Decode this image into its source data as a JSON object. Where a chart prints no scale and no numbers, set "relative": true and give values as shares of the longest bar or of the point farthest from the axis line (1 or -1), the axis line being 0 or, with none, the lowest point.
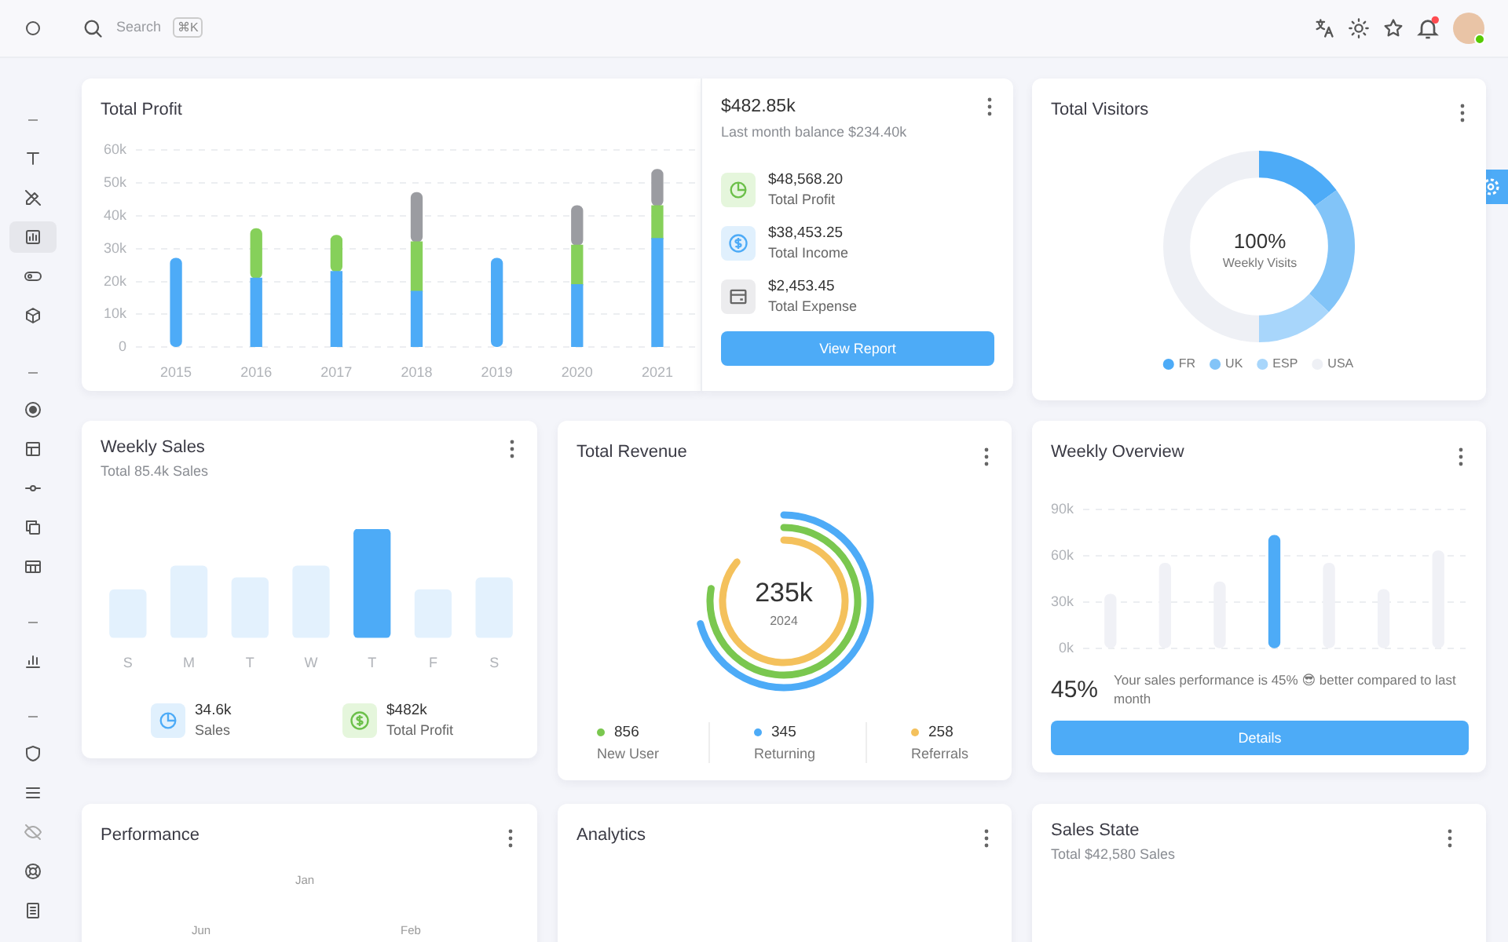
{
  "chart_data": [
    {
      "type": "other",
      "annotations": [
        "Search",
        "⌘K"
      ]
    },
    {
      "type": "bar",
      "title": "Total Profit",
      "categories": [
        "2015",
        "2016",
        "2017",
        "2018",
        "2019",
        "2020",
        "2021"
      ],
      "stacked": true,
      "series": [
        {
          "color": "#4dabf7",
          "values": [
            27000,
            21000,
            23000,
            17000,
            27000,
            19000,
            33000
          ]
        },
        {
          "color": "#86d05a",
          "values": [
            null,
            15000,
            11000,
            15000,
            null,
            12000,
            10000
          ]
        },
        {
          "color": "#9b9ca1",
          "values": [
            null,
            null,
            null,
            15000,
            null,
            12000,
            11000
          ]
        }
      ],
      "ylim": [
        0,
        60000
      ],
      "yticks": [
        0,
        {
          "value": 10000,
          "label": "10k"
        },
        {
          "value": 20000,
          "label": "20k"
        },
        {
          "value": 30000,
          "label": "30k"
        },
        {
          "value": 40000,
          "label": "40k"
        },
        {
          "value": 50000,
          "label": "50k"
        },
        {
          "value": 60000,
          "label": "60k"
        }
      ],
      "grid": "y"
    },
    {
      "type": "other",
      "title": "$482.85k",
      "subtitle": "Last month balance $234.40k",
      "annotations": [
        "$48,568.20",
        "Total Profit",
        "$38,453.25",
        "Total Income",
        "$2,453.45",
        "Total Expense",
        "View Report"
      ]
    },
    {
      "type": "donut",
      "title": "Total Visitors",
      "categories": [
        "FR",
        "UK",
        "ESP",
        "USA"
      ],
      "values": [
        15,
        22,
        13,
        50
      ],
      "colors": [
        "#4dabf7",
        "#82c4f8",
        "#a8d6fb",
        "#eef0f5"
      ],
      "legend": "bottom",
      "annotations": [
        "100%",
        "Weekly Visits"
      ]
    },
    {
      "type": "bar",
      "title": "Weekly Sales",
      "subtitle": "Total 85.4k Sales",
      "categories": [
        "S",
        "M",
        "T",
        "W",
        "T",
        "F",
        "S"
      ],
      "relative": true,
      "values": [
        0.44,
        0.66,
        0.55,
        0.66,
        1,
        0.44,
        0.55
      ],
      "colors": [
        "#e3f1fd",
        "#e3f1fd",
        "#e3f1fd",
        "#e3f1fd",
        "#4dabf7",
        "#e3f1fd",
        "#e3f1fd"
      ],
      "annotations": [
        "34.6k",
        "Sales",
        "$482k",
        "Total Profit"
      ]
    },
    {
      "type": "other",
      "title": "Total Revenue",
      "annotations": [
        "235k",
        "2024",
        "856",
        "New User",
        "345",
        "Returning",
        "258",
        "Referrals"
      ]
    },
    {
      "type": "bar",
      "title": "Weekly Overview",
      "categories": [
        null,
        null,
        null,
        null,
        null,
        null,
        null
      ],
      "values": [
        35000,
        55000,
        43000,
        73000,
        55000,
        38000,
        63000
      ],
      "colors": [
        "#f0f1f6",
        "#f0f1f6",
        "#f0f1f6",
        "#4dabf7",
        "#f0f1f6",
        "#f0f1f6",
        "#f0f1f6"
      ],
      "ylim": [
        0,
        90000
      ],
      "yticks": [
        {
          "value": 0,
          "label": "0k"
        },
        {
          "value": 30000,
          "label": "30k"
        },
        {
          "value": 60000,
          "label": "60k"
        },
        {
          "value": 90000,
          "label": "90k"
        }
      ],
      "grid": "y",
      "annotations": [
        "45%",
        "Your sales performance is 45% 😎 better compared to last month",
        "Details"
      ]
    },
    {
      "type": "other",
      "title": "Performance",
      "annotations": [
        "Jan",
        "Feb",
        "Jun"
      ]
    },
    {
      "type": "other",
      "title": "Analytics"
    },
    {
      "type": "other",
      "title": "Sales State",
      "subtitle": "Total $42,580 Sales"
    }
  ]
}
